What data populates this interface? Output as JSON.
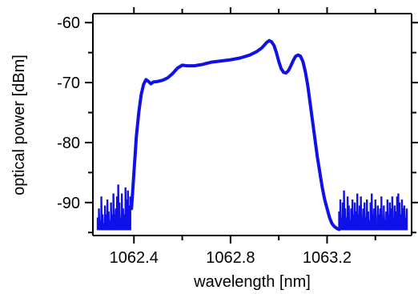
{
  "chart_data": {
    "type": "line",
    "xlabel": "wavelength [nm]",
    "ylabel": "optical power [dBm]",
    "xlim": [
      1062.23,
      1063.55
    ],
    "ylim": [
      -95.5,
      -58.5
    ],
    "xticks": [
      1062.4,
      1062.8,
      1063.2
    ],
    "xtick_labels": [
      "1062.4",
      "1062.8",
      "1063.2"
    ],
    "yticks": [
      -60,
      -70,
      -80,
      -90
    ],
    "ytick_labels": [
      "-60",
      "-70",
      "-80",
      "-90"
    ],
    "grid": false,
    "legend": "none",
    "series": [
      {
        "color": "#1010e8",
        "x": [
          1062.39,
          1062.395,
          1062.4,
          1062.405,
          1062.41,
          1062.42,
          1062.43,
          1062.44,
          1062.45,
          1062.46,
          1062.47,
          1062.48,
          1062.5,
          1062.52,
          1062.54,
          1062.56,
          1062.58,
          1062.6,
          1062.62,
          1062.65,
          1062.68,
          1062.72,
          1062.76,
          1062.8,
          1062.84,
          1062.88,
          1062.91,
          1062.93,
          1062.95,
          1062.96,
          1062.97,
          1062.98,
          1062.99,
          1063.0,
          1063.01,
          1063.02,
          1063.03,
          1063.04,
          1063.05,
          1063.06,
          1063.07,
          1063.08,
          1063.09,
          1063.1,
          1063.11,
          1063.12,
          1063.13,
          1063.14,
          1063.15,
          1063.16,
          1063.17,
          1063.18,
          1063.19,
          1063.2,
          1063.21,
          1063.22,
          1063.23,
          1063.24,
          1063.25
        ],
        "y": [
          -91,
          -88,
          -85,
          -82,
          -79,
          -75,
          -72,
          -70.3,
          -69.5,
          -69.8,
          -70.2,
          -69.9,
          -69.8,
          -69.6,
          -69.2,
          -68.5,
          -67.6,
          -67.1,
          -67.2,
          -67.2,
          -67.0,
          -66.6,
          -66.4,
          -66.2,
          -65.9,
          -65.4,
          -64.8,
          -64.2,
          -63.3,
          -63.0,
          -63.2,
          -63.8,
          -65.0,
          -66.5,
          -67.7,
          -68.3,
          -68.4,
          -68.0,
          -67.2,
          -66.3,
          -65.6,
          -65.4,
          -65.6,
          -66.5,
          -68.2,
          -70.5,
          -73.5,
          -76.5,
          -79.5,
          -82.5,
          -85.0,
          -87.5,
          -89.5,
          -91.0,
          -92.5,
          -93.5,
          -94.0,
          -94.3,
          -94.5
        ],
        "noise_left": {
          "x": [
            1062.25,
            1062.255,
            1062.26,
            1062.265,
            1062.27,
            1062.275,
            1062.28,
            1062.285,
            1062.29,
            1062.295,
            1062.3,
            1062.305,
            1062.31,
            1062.315,
            1062.32,
            1062.325,
            1062.33,
            1062.335,
            1062.34,
            1062.345,
            1062.35,
            1062.355,
            1062.36,
            1062.365,
            1062.37,
            1062.375,
            1062.38,
            1062.385
          ],
          "low": [
            -94.6,
            -94.6,
            -94.6,
            -94.6,
            -94.6,
            -94.6,
            -94.6,
            -94.6,
            -94.6,
            -94.6,
            -94.6,
            -94.6,
            -94.6,
            -94.6,
            -94.6,
            -94.6,
            -94.6,
            -94.6,
            -94.6,
            -94.6,
            -94.6,
            -94.6,
            -94.6,
            -94.6,
            -94.6,
            -94.6,
            -94.6,
            -94.6
          ],
          "high": [
            -92.5,
            -91.0,
            -93.0,
            -89.0,
            -92.0,
            -93.5,
            -90.5,
            -92.0,
            -89.5,
            -91.5,
            -93.0,
            -90.0,
            -92.0,
            -88.5,
            -92.0,
            -91.0,
            -89.0,
            -87.0,
            -90.0,
            -92.5,
            -88.5,
            -91.0,
            -92.0,
            -87.5,
            -89.5,
            -88.0,
            -90.5,
            -89.0
          ]
        },
        "noise_right": {
          "x": [
            1063.25,
            1063.255,
            1063.26,
            1063.265,
            1063.27,
            1063.275,
            1063.28,
            1063.285,
            1063.29,
            1063.295,
            1063.3,
            1063.305,
            1063.31,
            1063.315,
            1063.32,
            1063.325,
            1063.33,
            1063.335,
            1063.34,
            1063.345,
            1063.35,
            1063.355,
            1063.36,
            1063.365,
            1063.37,
            1063.375,
            1063.38,
            1063.385,
            1063.39,
            1063.395,
            1063.4,
            1063.405,
            1063.41,
            1063.415,
            1063.42,
            1063.425,
            1063.43,
            1063.435,
            1063.44,
            1063.445,
            1063.45,
            1063.455,
            1063.46,
            1063.465,
            1063.47,
            1063.475,
            1063.48,
            1063.485,
            1063.49,
            1063.495,
            1063.5,
            1063.505,
            1063.51,
            1063.515,
            1063.52,
            1063.525,
            1063.53
          ],
          "low": [
            -94.6,
            -94.6,
            -94.6,
            -94.6,
            -94.6,
            -94.6,
            -94.6,
            -94.6,
            -94.6,
            -94.6,
            -94.6,
            -94.6,
            -94.6,
            -94.6,
            -94.6,
            -94.6,
            -94.6,
            -94.6,
            -94.6,
            -94.6,
            -94.6,
            -94.6,
            -94.6,
            -94.6,
            -94.6,
            -94.6,
            -94.6,
            -94.6,
            -94.6,
            -94.6,
            -94.6,
            -94.6,
            -94.6,
            -94.6,
            -94.6,
            -94.6,
            -94.6,
            -94.6,
            -94.6,
            -94.6,
            -94.6,
            -94.6,
            -94.6,
            -94.6,
            -94.6,
            -94.6,
            -94.6,
            -94.6,
            -94.6,
            -94.6,
            -94.6,
            -94.6,
            -94.6,
            -94.6,
            -94.6,
            -94.6,
            -94.6
          ],
          "high": [
            -91.5,
            -89.5,
            -92.5,
            -90.0,
            -88.0,
            -91.0,
            -92.5,
            -89.0,
            -90.5,
            -93.0,
            -91.0,
            -89.5,
            -92.0,
            -90.0,
            -91.5,
            -88.5,
            -92.0,
            -90.5,
            -89.0,
            -93.0,
            -91.0,
            -90.0,
            -92.5,
            -89.5,
            -91.5,
            -93.0,
            -90.0,
            -88.5,
            -92.0,
            -91.0,
            -89.5,
            -93.5,
            -90.5,
            -92.0,
            -91.0,
            -89.0,
            -92.5,
            -90.5,
            -93.0,
            -91.5,
            -89.5,
            -92.0,
            -90.0,
            -91.0,
            -89.0,
            -92.5,
            -90.5,
            -91.5,
            -89.0,
            -88.5,
            -90.0,
            -92.0,
            -89.5,
            -91.0,
            -90.5,
            -92.5,
            -91.0
          ]
        }
      }
    ]
  }
}
